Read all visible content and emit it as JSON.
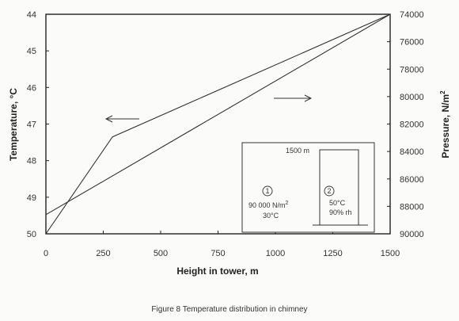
{
  "chart_data": {
    "type": "line",
    "xlabel": "Height in tower, m",
    "ylabel_left": "Temperature, °C",
    "ylabel_right": "Pressure, N/m",
    "ylabel_right_sup": "2",
    "xlim": [
      0,
      1500
    ],
    "ylim_left": [
      44,
      50
    ],
    "ylim_left_inverted": true,
    "ylim_right": [
      74000,
      90000
    ],
    "ylim_right_inverted": true,
    "x_ticks": [
      "0",
      "250",
      "500",
      "750",
      "1000",
      "1250",
      "1500"
    ],
    "y_left_ticks": [
      "44",
      "45",
      "46",
      "47",
      "48",
      "49",
      "50"
    ],
    "y_right_ticks": [
      "74000",
      "76000",
      "78000",
      "80000",
      "82000",
      "84000",
      "86000",
      "88000",
      "90000"
    ],
    "grid": false,
    "series": [
      {
        "axis": "left",
        "x": [
          0,
          290,
          1500
        ],
        "y": [
          50,
          47.35,
          44.0
        ]
      },
      {
        "axis": "right",
        "x": [
          0,
          1500
        ],
        "y": [
          88600,
          74000
        ]
      }
    ],
    "annotations": {
      "arrow_left_direction": "left",
      "arrow_right_direction": "right"
    },
    "inset": {
      "height_label": "1500 m",
      "point1_marker": "1",
      "point1_pressure": "90 000 N/m",
      "point1_pressure_sup": "2",
      "point1_temp": "30°C",
      "point2_marker": "2",
      "point2_temp": "50°C",
      "point2_rh": "90% rh"
    }
  },
  "caption": "Figure 8  Temperature distribution in chimney"
}
